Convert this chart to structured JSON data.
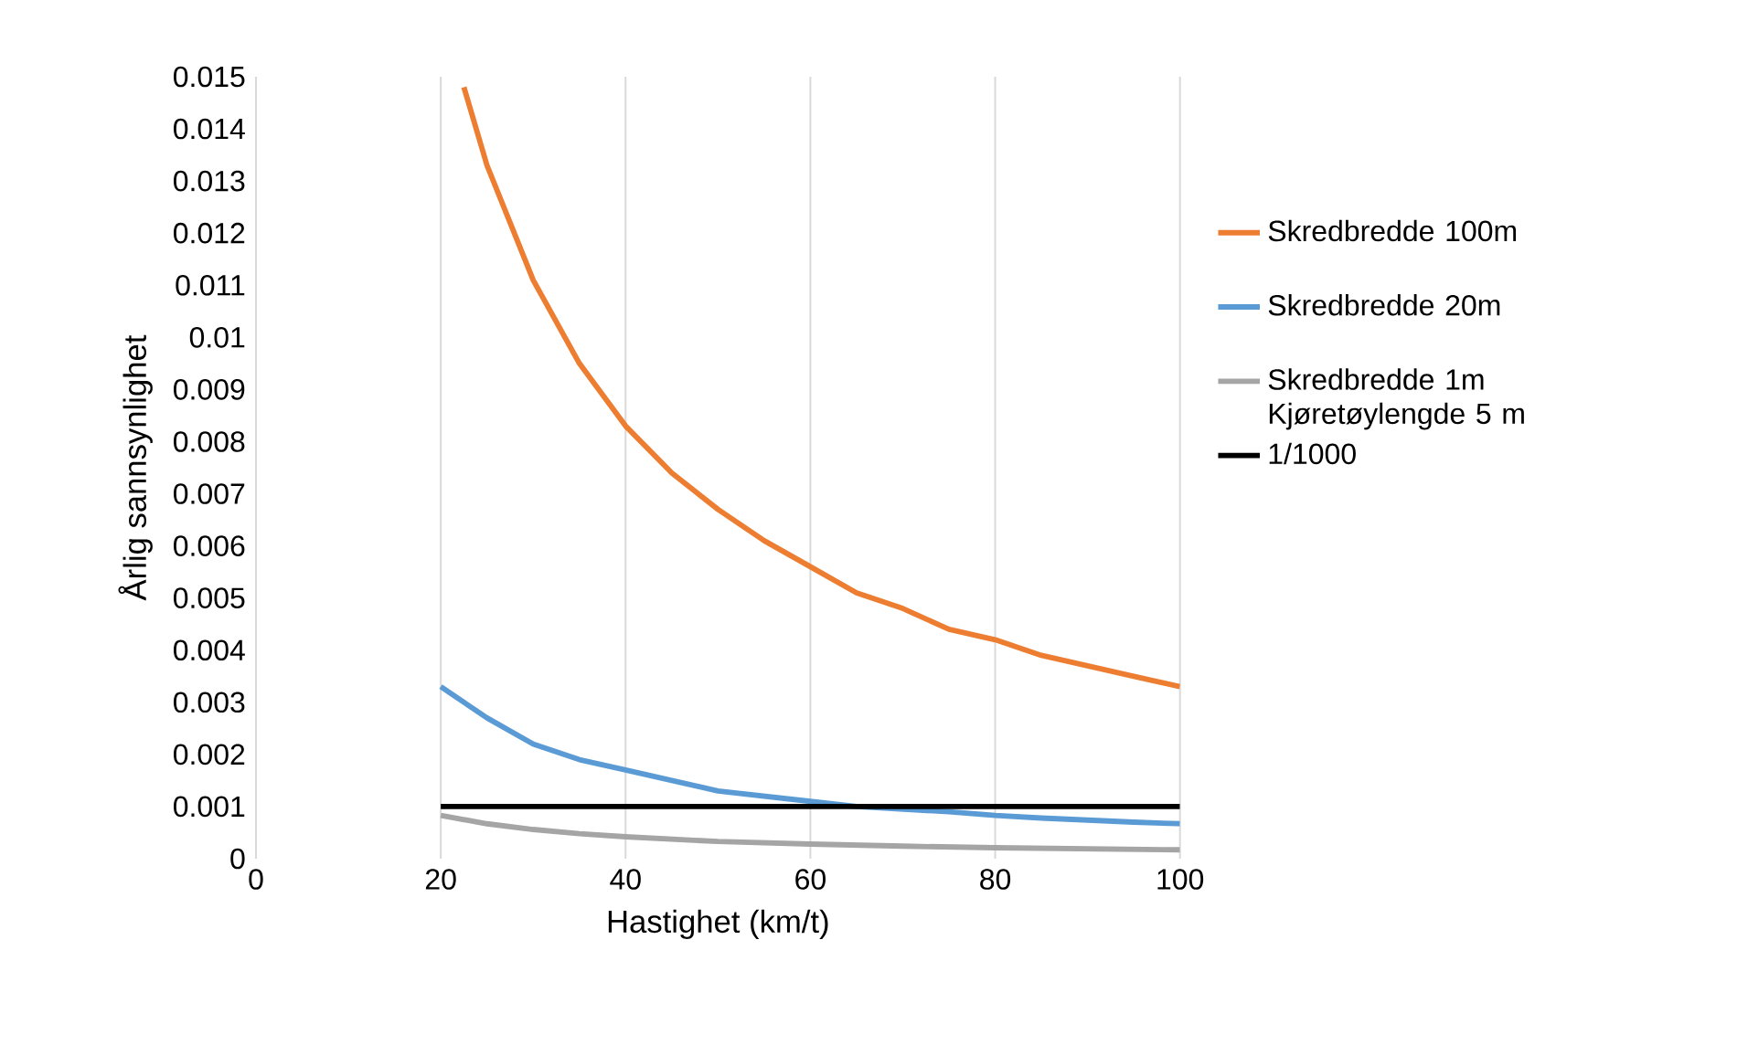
{
  "chart_data": {
    "type": "line",
    "xlabel": "Hastighet (km/t)",
    "ylabel": "Årlig sannsynlighet",
    "xlim": [
      0,
      100
    ],
    "xticks": [
      0,
      20,
      40,
      60,
      80,
      100
    ],
    "ylim": [
      0,
      0.015
    ],
    "yticks": [
      0,
      0.001,
      0.002,
      0.003,
      0.004,
      0.005,
      0.006,
      0.007,
      0.008,
      0.009,
      0.01,
      0.011,
      0.012,
      0.013,
      0.014,
      0.015
    ],
    "grid": "x",
    "legend": "right",
    "marker": "none",
    "line_style": "solid",
    "series": [
      {
        "name": "Skredbredde 100m",
        "color": "#ed7d31",
        "x": [
          22.5,
          25,
          30,
          35,
          40,
          45,
          50,
          55,
          60,
          65,
          70,
          75,
          80,
          85,
          90,
          95,
          100
        ],
        "values": [
          0.0148,
          0.0133,
          0.0111,
          0.0095,
          0.0083,
          0.0074,
          0.0067,
          0.0061,
          0.0056,
          0.0051,
          0.0048,
          0.0044,
          0.0042,
          0.0039,
          0.0037,
          0.0035,
          0.0033
        ]
      },
      {
        "name": "Skredbredde 20m",
        "color": "#5b9bd5",
        "x": [
          20,
          25,
          30,
          35,
          40,
          45,
          50,
          55,
          60,
          65,
          70,
          75,
          80,
          85,
          90,
          95,
          100
        ],
        "values": [
          0.0033,
          0.0027,
          0.0022,
          0.0019,
          0.0017,
          0.0015,
          0.0013,
          0.0012,
          0.0011,
          0.001,
          0.00095,
          0.0009,
          0.00083,
          0.00078,
          0.00074,
          0.0007,
          0.00067
        ]
      },
      {
        "name": "Skredbredde 1m Kjøretøylengde 5 m",
        "color": "#a5a5a5",
        "x": [
          20,
          25,
          30,
          35,
          40,
          50,
          60,
          70,
          80,
          90,
          100
        ],
        "values": [
          0.00083,
          0.00067,
          0.00056,
          0.00048,
          0.00042,
          0.00033,
          0.00028,
          0.00024,
          0.00021,
          0.00019,
          0.00017
        ]
      },
      {
        "name": "1/1000",
        "color": "#000000",
        "x": [
          20,
          100
        ],
        "values": [
          0.001,
          0.001
        ]
      }
    ]
  }
}
